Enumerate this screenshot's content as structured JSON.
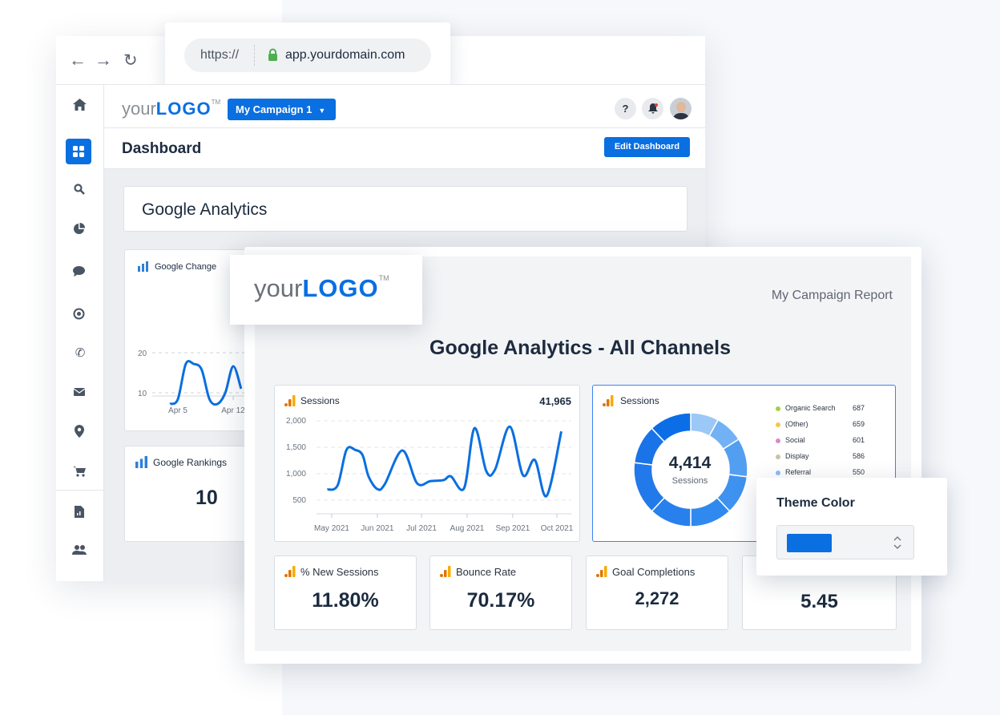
{
  "browser": {
    "url_scheme": "https://",
    "url_domain": "app.yourdomain.com",
    "icons": [
      "back-arrow-icon",
      "forward-arrow-icon",
      "reload-icon",
      "lock-icon"
    ]
  },
  "logo": {
    "your": "your",
    "logo": "LOGO",
    "tm": "TM"
  },
  "header": {
    "campaign": "My Campaign 1",
    "help": "?"
  },
  "dashboard": {
    "title": "Dashboard",
    "edit_button": "Edit Dashboard",
    "section_title": "Google Analytics",
    "google_change": {
      "title": "Google Change"
    },
    "google_rankings": {
      "title": "Google Rankings",
      "value": "10"
    }
  },
  "sidebar": {
    "items": [
      "home",
      "dashboard",
      "search",
      "pie-chart",
      "chat",
      "target",
      "phone",
      "email",
      "location",
      "cart",
      "report",
      "users"
    ],
    "active": "dashboard"
  },
  "report": {
    "campaign_label": "My Campaign Report",
    "title": "Google Analytics - All Channels",
    "sessions_line": {
      "title": "Sessions",
      "total": "41,965"
    },
    "sessions_donut": {
      "title": "Sessions",
      "center_value": "4,414",
      "center_label": "Sessions",
      "legend": [
        {
          "label": "Organic Search",
          "value": "687",
          "color": "#a4cf4a"
        },
        {
          "label": "(Other)",
          "value": "659",
          "color": "#f2c84b"
        },
        {
          "label": "Social",
          "value": "601",
          "color": "#d98bc9"
        },
        {
          "label": "Display",
          "value": "586",
          "color": "#c9c2a6"
        },
        {
          "label": "Referral",
          "value": "550",
          "color": "#8fbcf2"
        }
      ]
    },
    "kpis": [
      {
        "label": "% New Sessions",
        "value": "11.80%"
      },
      {
        "label": "Bounce Rate",
        "value": "70.17%"
      },
      {
        "label": "Goal Completions",
        "value": "2,272"
      },
      {
        "label": "",
        "value": "5.45"
      }
    ]
  },
  "theme": {
    "title": "Theme Color",
    "color": "#0a6fe0"
  },
  "colors": {
    "brand": "#0a6fe0",
    "line": "#0a6fe0",
    "ga_orange": "#f29a1b"
  },
  "chart_data": [
    {
      "type": "line",
      "title": "Google Change",
      "yticks": [
        10,
        20
      ],
      "xticks": [
        "Apr 5",
        "Apr 12"
      ],
      "grid": true,
      "x": [
        "Apr 4",
        "Apr 5",
        "Apr 6",
        "Apr 7",
        "Apr 8",
        "Apr 9",
        "Apr 10",
        "Apr 11",
        "Apr 12",
        "Apr 13"
      ],
      "values": [
        7.2,
        8.4,
        17.2,
        17.2,
        15.8,
        8.4,
        7.2,
        10,
        16.6,
        11
      ]
    },
    {
      "type": "line",
      "title": "Sessions",
      "yticks": [
        500,
        1000,
        1500,
        2000
      ],
      "ytick_labels": [
        "500",
        "1,000",
        "1,500",
        "2,000"
      ],
      "xticks": [
        "May 2021",
        "Jun 2021",
        "Jul 2021",
        "Aug 2021",
        "Sep 2021",
        "Oct 2021"
      ],
      "grid": true,
      "x": [
        "2021-04-28",
        "2021-05-05",
        "2021-05-11",
        "2021-05-17",
        "2021-05-22",
        "2021-05-26",
        "2021-06-01",
        "2021-06-06",
        "2021-06-18",
        "2021-06-28",
        "2021-07-07",
        "2021-07-16",
        "2021-07-21",
        "2021-07-30",
        "2021-08-06",
        "2021-08-14",
        "2021-08-20",
        "2021-08-30",
        "2021-09-08",
        "2021-09-16",
        "2021-09-24",
        "2021-10-04"
      ],
      "values": [
        700,
        780,
        1450,
        1450,
        1350,
        950,
        710,
        800,
        1440,
        820,
        860,
        880,
        950,
        730,
        1860,
        1050,
        1080,
        1890,
        970,
        1260,
        580,
        1800
      ]
    },
    {
      "type": "pie",
      "title": "Sessions",
      "center": "4,414",
      "segments": [
        {
          "share": 0.08,
          "color": "#9cc8f8"
        },
        {
          "share": 0.08,
          "color": "#73b1f5"
        },
        {
          "share": 0.11,
          "color": "#529ff1"
        },
        {
          "share": 0.11,
          "color": "#3f92ef"
        },
        {
          "share": 0.12,
          "color": "#3089ee"
        },
        {
          "share": 0.12,
          "color": "#2880ec"
        },
        {
          "share": 0.15,
          "color": "#2279ea"
        },
        {
          "share": 0.11,
          "color": "#1b73e8"
        },
        {
          "share": 0.12,
          "color": "#0b6ee6"
        }
      ]
    }
  ]
}
